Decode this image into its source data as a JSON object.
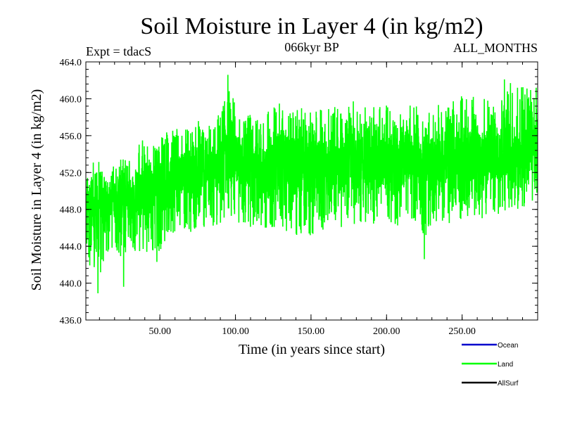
{
  "chart_data": {
    "type": "line",
    "title": "Soil Moisture in Layer 4 (in kg/m2)",
    "subtitle_left": "Expt = tdacS",
    "subtitle_center": "066kyr BP",
    "subtitle_right": "ALL_MONTHS",
    "xlabel": "Time (in years since start)",
    "ylabel": "Soil Moisture in Layer 4 (in kg/m2)",
    "xlim": [
      1,
      300
    ],
    "ylim": [
      436.0,
      464.0
    ],
    "x_ticks": [
      50,
      100,
      150,
      200,
      250
    ],
    "x_tick_labels": [
      "50.00",
      "100.00",
      "150.00",
      "200.00",
      "250.00"
    ],
    "y_ticks": [
      436,
      440,
      444,
      448,
      452,
      456,
      460,
      464
    ],
    "y_tick_labels": [
      "436.0",
      "440.0",
      "444.0",
      "448.0",
      "452.0",
      "456.0",
      "460.0",
      "464.0"
    ],
    "grid": false,
    "legend_position": "bottom-right",
    "series": [
      {
        "name": "Ocean",
        "color": "#0000CC",
        "values": []
      },
      {
        "name": "Land",
        "color": "#00FF00",
        "monthly": true,
        "x": [
          1,
          5,
          10,
          15,
          20,
          25,
          30,
          35,
          40,
          45,
          50,
          55,
          60,
          65,
          70,
          75,
          80,
          85,
          90,
          95,
          100,
          105,
          110,
          115,
          120,
          125,
          130,
          135,
          140,
          145,
          150,
          155,
          160,
          165,
          170,
          175,
          180,
          185,
          190,
          195,
          200,
          205,
          210,
          215,
          220,
          225,
          230,
          235,
          240,
          245,
          250,
          255,
          260,
          265,
          270,
          275,
          280,
          285,
          290,
          295,
          300
        ],
        "mean": [
          448.0,
          448.5,
          449.0,
          448.5,
          449.5,
          449.0,
          449.5,
          450.0,
          450.5,
          450.0,
          450.5,
          451.0,
          451.5,
          452.0,
          452.0,
          452.0,
          452.5,
          452.0,
          452.5,
          454.0,
          453.0,
          452.5,
          452.5,
          452.0,
          452.5,
          453.0,
          453.5,
          453.5,
          452.5,
          452.5,
          452.5,
          452.5,
          452.5,
          453.0,
          452.5,
          453.5,
          453.5,
          453.5,
          453.0,
          453.0,
          453.0,
          452.5,
          453.0,
          453.5,
          453.5,
          452.0,
          453.0,
          453.0,
          452.5,
          453.0,
          453.5,
          453.5,
          453.5,
          453.5,
          453.5,
          454.0,
          454.5,
          454.0,
          454.5,
          455.0,
          455.5
        ],
        "low": [
          443.5,
          441.0,
          440.0,
          443.0,
          444.0,
          442.5,
          443.5,
          443.5,
          443.0,
          443.0,
          443.5,
          445.0,
          445.5,
          446.0,
          445.5,
          446.0,
          446.0,
          446.0,
          446.5,
          447.0,
          447.0,
          446.0,
          446.0,
          446.0,
          446.0,
          446.0,
          446.0,
          445.5,
          445.0,
          445.0,
          445.0,
          445.5,
          446.0,
          446.5,
          446.0,
          446.0,
          446.5,
          446.5,
          446.0,
          446.0,
          446.5,
          446.0,
          446.5,
          446.5,
          446.5,
          444.0,
          446.0,
          446.5,
          446.0,
          446.5,
          447.0,
          447.0,
          447.0,
          447.0,
          447.0,
          447.5,
          448.0,
          448.0,
          448.0,
          448.5,
          449.5
        ],
        "high": [
          451.5,
          453.0,
          453.5,
          451.5,
          453.0,
          453.5,
          454.0,
          455.0,
          456.0,
          455.0,
          456.0,
          456.5,
          457.5,
          456.5,
          457.0,
          458.0,
          457.0,
          457.5,
          458.5,
          461.5,
          459.5,
          458.0,
          458.5,
          458.0,
          459.0,
          459.5,
          459.5,
          459.0,
          459.0,
          459.0,
          458.5,
          459.0,
          459.5,
          459.5,
          459.0,
          459.5,
          460.0,
          459.5,
          459.0,
          459.5,
          459.5,
          458.5,
          459.5,
          460.0,
          459.5,
          458.0,
          459.0,
          459.5,
          459.0,
          460.0,
          460.5,
          460.0,
          460.5,
          460.0,
          460.0,
          461.0,
          461.0,
          461.5,
          461.5,
          461.0,
          461.0
        ],
        "extreme_points": [
          [
            9,
            438.9
          ],
          [
            26,
            439.6
          ],
          [
            48,
            442.3
          ],
          [
            225,
            442.6
          ],
          [
            95,
            462.6
          ],
          [
            278,
            462.1
          ],
          [
            282,
            461.7
          ],
          [
            299,
            461.2
          ]
        ]
      },
      {
        "name": "AllSurf",
        "color": "#000000",
        "values": []
      }
    ]
  }
}
